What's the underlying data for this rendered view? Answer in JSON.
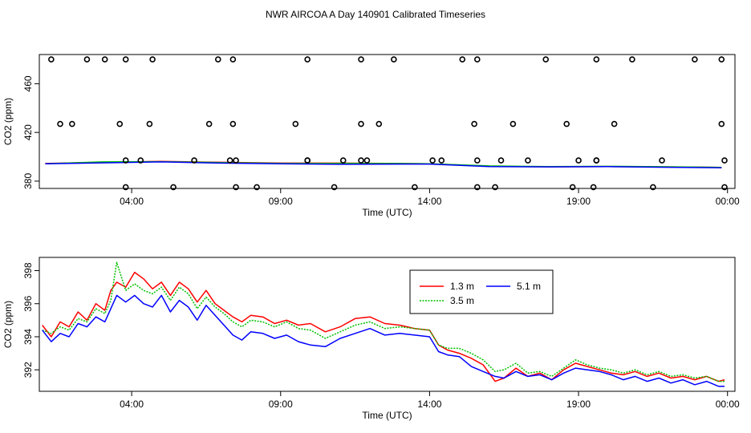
{
  "title": "NWR AIRCOA A  Day 140901  Calibrated Timeseries",
  "chart_data": [
    {
      "type": "scatter",
      "name": "top-panel",
      "xlabel": "Time (UTC)",
      "ylabel": "CO2 (ppm)",
      "xlim": [
        0.9,
        24.25
      ],
      "ylim": [
        374,
        484
      ],
      "x_ticks": [
        4,
        9,
        14,
        19,
        24
      ],
      "x_tick_labels": [
        "04:00",
        "09:00",
        "14:00",
        "19:00",
        "00:00"
      ],
      "y_ticks": [
        380,
        420,
        460
      ],
      "y_tick_labels": [
        "380",
        "420",
        "460"
      ],
      "calibration_points": {
        "x": [
          1.3,
          2.5,
          3.1,
          3.8,
          4.7,
          6.9,
          7.4,
          9.9,
          11.7,
          12.8,
          15.1,
          15.6,
          17.9,
          19.6,
          20.8,
          22.9,
          23.8,
          2.0,
          4.6,
          6.6,
          7.4,
          9.5,
          11.7,
          12.3,
          15.5,
          16.8,
          18.6,
          20.2,
          23.8,
          1.6,
          3.6,
          3.8,
          4.3,
          7.3,
          9.9,
          11.9,
          14.4,
          16.4,
          19.6,
          6.1,
          7.5,
          9.9,
          11.1,
          11.7,
          14.1,
          15.6,
          17.3,
          19.0,
          19.6,
          21.8,
          23.9,
          3.8,
          5.4,
          7.5,
          8.2,
          10.8,
          13.5,
          15.6,
          16.2,
          18.8,
          19.5,
          21.5,
          23.9
        ],
        "y": [
          480,
          480,
          480,
          480,
          480,
          480,
          480,
          480,
          480,
          480,
          480,
          480,
          480,
          480,
          480,
          480,
          480,
          427,
          427,
          427,
          427,
          427,
          427,
          427,
          427,
          427,
          427,
          427,
          427,
          427,
          427,
          397,
          397,
          397,
          397,
          397,
          397,
          397,
          397,
          397,
          397,
          397,
          397,
          397,
          397,
          397,
          397,
          397,
          397,
          397,
          397,
          375,
          375,
          375,
          375,
          375,
          375,
          375,
          375,
          375,
          375,
          375,
          375
        ]
      },
      "series": [
        {
          "name": "1.3 m",
          "color": "#ff0000",
          "x": [
            1.1,
            3,
            5,
            7,
            9,
            11,
            13,
            14,
            16,
            18,
            20,
            22,
            23.8
          ],
          "y": [
            394.5,
            395.5,
            396.2,
            395.5,
            394.8,
            394.8,
            394.5,
            394.3,
            392.2,
            391.8,
            392,
            391.7,
            391.3
          ]
        },
        {
          "name": "3.5 m",
          "color": "#00c000",
          "x": [
            1.1,
            3,
            5,
            7,
            9,
            11,
            13,
            14,
            16,
            18,
            20,
            22,
            23.8
          ],
          "y": [
            394.3,
            395.8,
            396.0,
            395.3,
            394.6,
            394.6,
            394.5,
            394.3,
            392.5,
            391.9,
            392.2,
            391.8,
            391.3
          ]
        },
        {
          "name": "5.1 m",
          "color": "#0000ff",
          "x": [
            1.1,
            3,
            5,
            7,
            9,
            11,
            13,
            14,
            16,
            18,
            20,
            22,
            23.8
          ],
          "y": [
            394.2,
            395.0,
            395.8,
            394.8,
            394.2,
            393.8,
            394.0,
            394.0,
            392.0,
            391.7,
            391.9,
            391.4,
            391.0
          ]
        }
      ]
    },
    {
      "type": "line",
      "name": "bottom-panel",
      "xlabel": "Time (UTC)",
      "ylabel": "CO2 (ppm)",
      "xlim": [
        0.9,
        24.25
      ],
      "ylim": [
        390.7,
        398.8
      ],
      "x_ticks": [
        4,
        9,
        14,
        19,
        24
      ],
      "x_tick_labels": [
        "04:00",
        "09:00",
        "14:00",
        "19:00",
        "00:00"
      ],
      "y_ticks": [
        392,
        394,
        396,
        398
      ],
      "y_tick_labels": [
        "392",
        "394",
        "396",
        "398"
      ],
      "legend": {
        "position": "top-center",
        "entries": [
          "1.3 m",
          "3.5 m",
          "5.1 m"
        ]
      },
      "series": [
        {
          "name": "1.3 m",
          "color": "#ff0000",
          "style": "solid",
          "x": [
            1.0,
            1.3,
            1.6,
            1.9,
            2.2,
            2.5,
            2.8,
            3.1,
            3.3,
            3.5,
            3.8,
            4.1,
            4.4,
            4.7,
            5.0,
            5.3,
            5.6,
            5.9,
            6.2,
            6.5,
            6.8,
            7.1,
            7.4,
            7.7,
            8.0,
            8.4,
            8.8,
            9.2,
            9.6,
            10.0,
            10.5,
            11.0,
            11.5,
            12.0,
            12.5,
            13.0,
            13.5,
            14.0,
            14.3,
            14.6,
            15.0,
            15.4,
            15.8,
            16.2,
            16.5,
            16.9,
            17.3,
            17.7,
            18.1,
            18.5,
            18.9,
            19.3,
            19.7,
            20.1,
            20.5,
            20.9,
            21.3,
            21.7,
            22.1,
            22.5,
            22.9,
            23.3,
            23.7,
            23.9
          ],
          "y": [
            394.7,
            394.0,
            394.9,
            394.6,
            395.5,
            395.0,
            396.0,
            395.6,
            396.8,
            397.3,
            397.0,
            397.9,
            397.5,
            396.9,
            397.3,
            396.5,
            397.3,
            396.9,
            396.1,
            396.8,
            396.0,
            395.6,
            395.2,
            394.9,
            395.3,
            395.2,
            394.8,
            395.0,
            394.7,
            394.8,
            394.3,
            394.6,
            395.1,
            395.2,
            394.8,
            394.7,
            394.5,
            394.4,
            393.5,
            393.2,
            393.0,
            392.7,
            392.3,
            391.3,
            391.5,
            392.1,
            391.6,
            391.8,
            391.4,
            392.0,
            392.4,
            392.2,
            392.0,
            391.8,
            391.7,
            391.9,
            391.6,
            391.8,
            391.5,
            391.6,
            391.4,
            391.6,
            391.3,
            391.4
          ]
        },
        {
          "name": "3.5 m",
          "color": "#00c000",
          "style": "dotted",
          "x": [
            1.0,
            1.3,
            1.6,
            1.9,
            2.2,
            2.5,
            2.8,
            3.1,
            3.3,
            3.5,
            3.8,
            4.1,
            4.4,
            4.7,
            5.0,
            5.3,
            5.6,
            5.9,
            6.2,
            6.5,
            6.8,
            7.1,
            7.4,
            7.7,
            8.0,
            8.4,
            8.8,
            9.2,
            9.6,
            10.0,
            10.5,
            11.0,
            11.5,
            12.0,
            12.5,
            13.0,
            13.5,
            14.0,
            14.3,
            14.6,
            15.0,
            15.4,
            15.8,
            16.2,
            16.5,
            16.9,
            17.3,
            17.7,
            18.1,
            18.5,
            18.9,
            19.3,
            19.7,
            20.1,
            20.5,
            20.9,
            21.3,
            21.7,
            22.1,
            22.5,
            22.9,
            23.3,
            23.7,
            23.9
          ],
          "y": [
            394.4,
            394.2,
            394.6,
            394.4,
            395.1,
            394.9,
            395.7,
            395.4,
            396.2,
            398.5,
            396.8,
            397.2,
            396.8,
            396.6,
            397.0,
            396.2,
            397.0,
            396.6,
            395.7,
            396.4,
            395.8,
            395.4,
            394.9,
            394.6,
            395.0,
            394.9,
            394.6,
            394.9,
            394.5,
            394.4,
            393.9,
            394.3,
            394.7,
            394.9,
            394.5,
            394.6,
            394.5,
            394.4,
            393.5,
            393.3,
            393.3,
            393.0,
            392.6,
            391.9,
            392.0,
            392.4,
            391.8,
            391.9,
            391.6,
            392.1,
            392.6,
            392.3,
            392.1,
            392.0,
            391.8,
            392.0,
            391.7,
            391.9,
            391.6,
            391.7,
            391.5,
            391.6,
            391.3,
            391.3
          ]
        },
        {
          "name": "5.1 m",
          "color": "#0000ff",
          "style": "solid",
          "x": [
            1.0,
            1.3,
            1.6,
            1.9,
            2.2,
            2.5,
            2.8,
            3.1,
            3.3,
            3.5,
            3.8,
            4.1,
            4.4,
            4.7,
            5.0,
            5.3,
            5.6,
            5.9,
            6.2,
            6.5,
            6.8,
            7.1,
            7.4,
            7.7,
            8.0,
            8.4,
            8.8,
            9.2,
            9.6,
            10.0,
            10.5,
            11.0,
            11.5,
            12.0,
            12.5,
            13.0,
            13.5,
            14.0,
            14.3,
            14.6,
            15.0,
            15.4,
            15.8,
            16.2,
            16.5,
            16.9,
            17.3,
            17.7,
            18.1,
            18.5,
            18.9,
            19.3,
            19.7,
            20.1,
            20.5,
            20.9,
            21.3,
            21.7,
            22.1,
            22.5,
            22.9,
            23.3,
            23.7,
            23.9
          ],
          "y": [
            394.4,
            393.7,
            394.2,
            394.0,
            394.8,
            394.6,
            395.2,
            394.9,
            395.7,
            396.5,
            396.1,
            396.5,
            396.0,
            395.8,
            396.5,
            395.5,
            396.2,
            395.8,
            395.0,
            395.9,
            395.3,
            394.7,
            394.1,
            393.8,
            394.3,
            394.2,
            393.9,
            394.1,
            393.7,
            393.5,
            393.4,
            393.9,
            394.2,
            394.5,
            394.1,
            394.2,
            394.1,
            394.0,
            393.1,
            392.9,
            392.8,
            392.2,
            391.9,
            391.6,
            391.5,
            391.9,
            391.6,
            391.7,
            391.4,
            391.8,
            392.1,
            392.0,
            391.9,
            391.7,
            391.4,
            391.6,
            391.3,
            391.5,
            391.2,
            391.4,
            391.1,
            391.3,
            391.0,
            391.0
          ]
        }
      ]
    }
  ]
}
